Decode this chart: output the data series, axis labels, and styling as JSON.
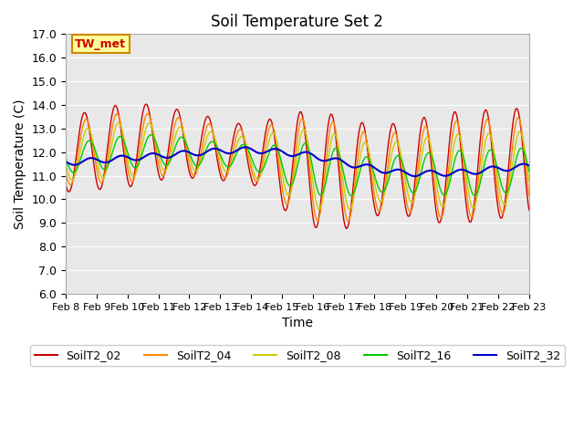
{
  "title": "Soil Temperature Set 2",
  "xlabel": "Time",
  "ylabel": "Soil Temperature (C)",
  "ylim": [
    6.0,
    17.0
  ],
  "yticks": [
    6.0,
    7.0,
    8.0,
    9.0,
    10.0,
    11.0,
    12.0,
    13.0,
    14.0,
    15.0,
    16.0,
    17.0
  ],
  "xtick_labels": [
    "Feb 8",
    "Feb 9",
    "Feb 10",
    "Feb 11",
    "Feb 12",
    "Feb 13",
    "Feb 14",
    "Feb 15",
    "Feb 16",
    "Feb 17",
    "Feb 18",
    "Feb 19",
    "Feb 20",
    "Feb 21",
    "Feb 22",
    "Feb 23"
  ],
  "colors": {
    "SoilT2_02": "#cc0000",
    "SoilT2_04": "#ff8800",
    "SoilT2_08": "#cccc00",
    "SoilT2_16": "#00cc00",
    "SoilT2_32": "#0000cc"
  },
  "annotation_text": "TW_met",
  "bg_color": "#e8e8e8",
  "outer_bg": "#ffffff"
}
